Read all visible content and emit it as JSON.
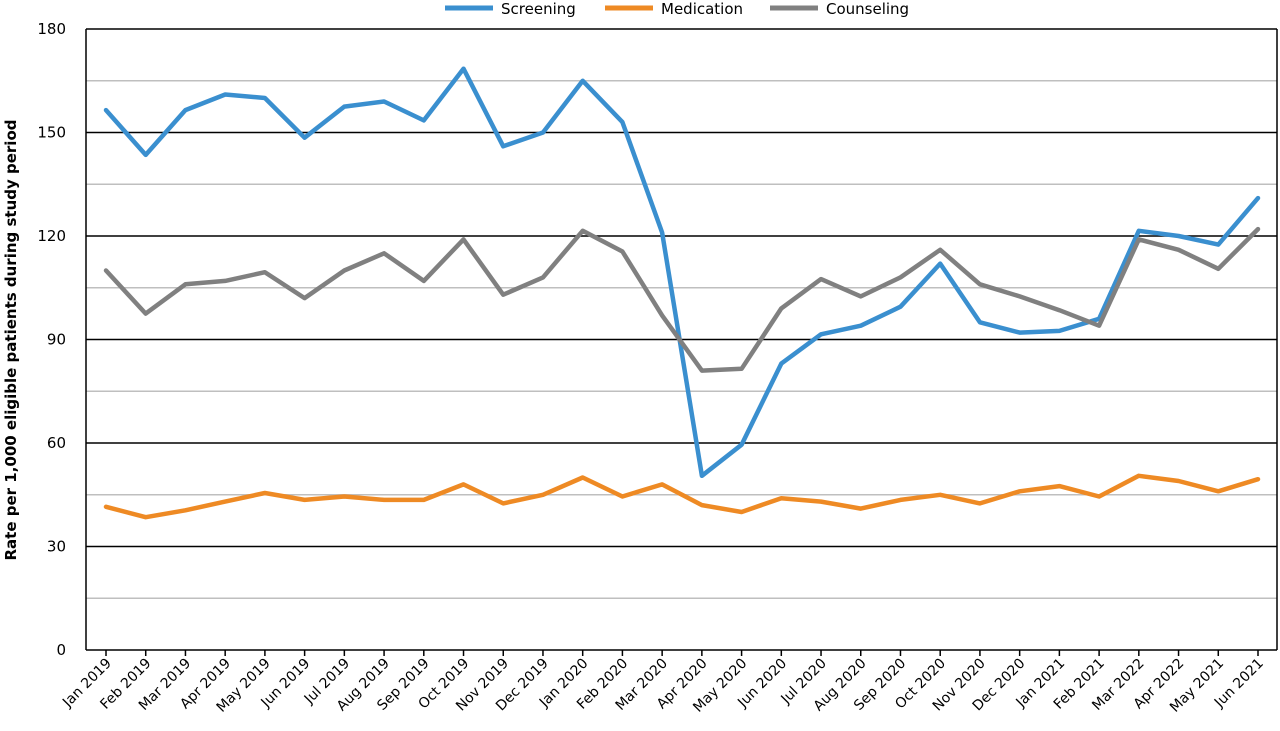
{
  "chart_data": {
    "type": "line",
    "title": "",
    "xlabel": "",
    "ylabel": "Rate per 1,000 eligible patients during study period",
    "ylim": [
      0,
      180
    ],
    "yticks": [
      0,
      30,
      60,
      90,
      120,
      150,
      180
    ],
    "grid": true,
    "legend_position": "top-center",
    "categories": [
      "Jan 2019",
      "Feb 2019",
      "Mar 2019",
      "Apr 2019",
      "May 2019",
      "Jun 2019",
      "Jul 2019",
      "Aug 2019",
      "Sep 2019",
      "Oct 2019",
      "Nov 2019",
      "Dec 2019",
      "Jan 2020",
      "Feb 2020",
      "Mar 2020",
      "Apr 2020",
      "May 2020",
      "Jun 2020",
      "Jul 2020",
      "Aug 2020",
      "Sep 2020",
      "Oct 2020",
      "Nov 2020",
      "Dec 2020",
      "Jan 2021",
      "Feb 2021",
      "Mar 2022",
      "Apr 2022",
      "May 2021",
      "Jun 2021"
    ],
    "series": [
      {
        "name": "Screening",
        "color": "#3a8fcf",
        "values": [
          156.5,
          143.5,
          156.5,
          161,
          160,
          148.5,
          157.5,
          159,
          153.5,
          168.5,
          146,
          150,
          165,
          153,
          121,
          50.5,
          59.5,
          83,
          91.5,
          94,
          99.5,
          112,
          95,
          92,
          92.5,
          96,
          121.5,
          120,
          117.5,
          131
        ]
      },
      {
        "name": "Medication",
        "color": "#ee8a24",
        "values": [
          41.5,
          38.5,
          40.5,
          43,
          45.5,
          43.5,
          44.5,
          43.5,
          43.5,
          48,
          42.5,
          45,
          50,
          44.5,
          48,
          42,
          40,
          44,
          43,
          41,
          43.5,
          45,
          42.5,
          46,
          47.5,
          44.5,
          50.5,
          49,
          46,
          49.5
        ]
      },
      {
        "name": "Counseling",
        "color": "#808080",
        "values": [
          110,
          97.5,
          106,
          107,
          109.5,
          102,
          110,
          115,
          107,
          119,
          103,
          108,
          121.5,
          115.5,
          97,
          81,
          81.5,
          99,
          107.5,
          102.5,
          108,
          116,
          106,
          102.5,
          98.5,
          94,
          119,
          116,
          110.5,
          122
        ]
      }
    ]
  }
}
